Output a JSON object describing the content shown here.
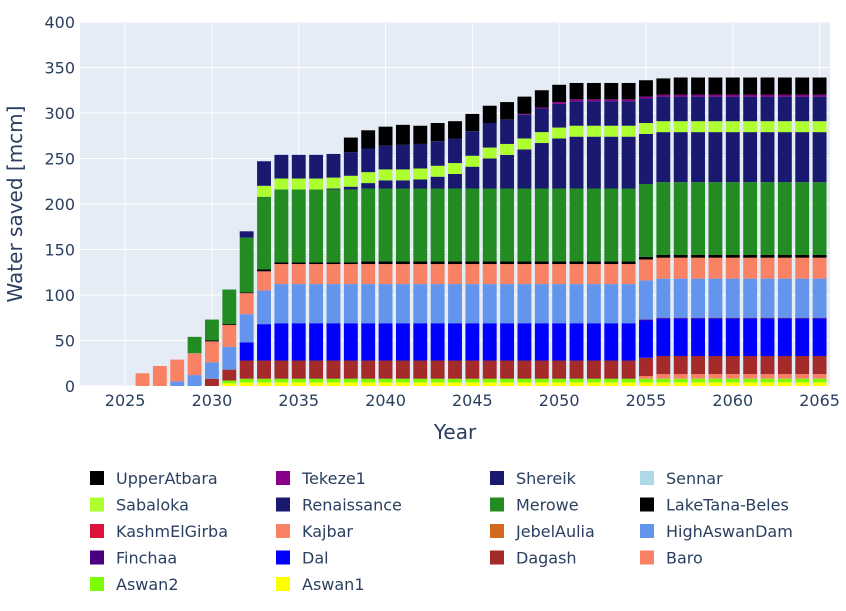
{
  "chart_data": {
    "type": "bar",
    "stacked": true,
    "xlabel": "Year",
    "ylabel": "Water saved [mcm]",
    "ylim": [
      0,
      400
    ],
    "yticks": [
      0,
      50,
      100,
      150,
      200,
      250,
      300,
      350,
      400
    ],
    "xticks": [
      2025,
      2030,
      2035,
      2040,
      2045,
      2050,
      2055,
      2060,
      2065
    ],
    "xlim": [
      2022.4,
      2065.6
    ],
    "grid": true,
    "legend_position": "bottom",
    "plot_bgcolor": "#e5ecf6",
    "x": [
      2026,
      2027,
      2028,
      2029,
      2030,
      2031,
      2032,
      2033,
      2034,
      2035,
      2036,
      2037,
      2038,
      2039,
      2040,
      2041,
      2042,
      2043,
      2044,
      2045,
      2046,
      2047,
      2048,
      2049,
      2050,
      2051,
      2052,
      2053,
      2054,
      2055,
      2056,
      2057,
      2058,
      2059,
      2060,
      2061,
      2062,
      2063,
      2064,
      2065
    ],
    "series": [
      {
        "name": "Aswan1",
        "color": "#ffff00",
        "values": [
          0,
          0,
          0,
          0,
          0,
          3,
          4,
          4,
          4,
          4,
          4,
          4,
          4,
          4,
          4,
          4,
          4,
          4,
          4,
          4,
          4,
          4,
          4,
          4,
          4,
          4,
          4,
          4,
          4,
          4,
          4,
          4,
          4,
          4,
          4,
          4,
          4,
          4,
          4,
          4
        ]
      },
      {
        "name": "Aswan2",
        "color": "#7cfc00",
        "values": [
          0,
          0,
          0,
          0,
          0,
          3,
          4,
          4,
          4,
          4,
          4,
          4,
          4,
          4,
          4,
          4,
          4,
          4,
          4,
          4,
          4,
          4,
          4,
          4,
          4,
          4,
          4,
          4,
          4,
          4,
          4,
          4,
          4,
          4,
          4,
          4,
          4,
          4,
          4,
          4
        ]
      },
      {
        "name": "Baro",
        "color": "#fa8264",
        "values": [
          0,
          0,
          0,
          0,
          0,
          0,
          0,
          0,
          0,
          0,
          0,
          0,
          0,
          0,
          0,
          0,
          0,
          0,
          0,
          0,
          0,
          0,
          0,
          0,
          0,
          0,
          0,
          0,
          0,
          3,
          5,
          5,
          5,
          5,
          5,
          5,
          5,
          5,
          5,
          5
        ]
      },
      {
        "name": "Dagash",
        "color": "#a52a2a",
        "values": [
          0,
          0,
          0,
          0,
          8,
          12,
          20,
          20,
          20,
          20,
          20,
          20,
          20,
          20,
          20,
          20,
          20,
          20,
          20,
          20,
          20,
          20,
          20,
          20,
          20,
          20,
          20,
          20,
          20,
          20,
          20,
          20,
          20,
          20,
          20,
          20,
          20,
          20,
          20,
          20
        ]
      },
      {
        "name": "Dal",
        "color": "#0000ff",
        "values": [
          0,
          0,
          0,
          0,
          0,
          0,
          20,
          40,
          41,
          41,
          41,
          41,
          41,
          41,
          41,
          41,
          41,
          41,
          41,
          41,
          41,
          41,
          41,
          41,
          41,
          41,
          41,
          41,
          41,
          41,
          41,
          41,
          41,
          41,
          41,
          41,
          41,
          41,
          41,
          41
        ]
      },
      {
        "name": "Finchaa",
        "color": "#4b0082",
        "values": [
          0,
          0,
          0,
          0,
          0,
          0,
          0,
          0,
          0,
          0,
          0,
          0,
          0,
          0,
          0,
          0,
          0,
          0,
          0,
          0,
          0,
          0,
          0,
          0,
          0,
          0,
          0,
          0,
          0,
          1,
          1,
          1,
          1,
          1,
          1,
          1,
          1,
          1,
          1,
          1
        ]
      },
      {
        "name": "HighAswanDam",
        "color": "#6495ed",
        "values": [
          0,
          0,
          5,
          12,
          18,
          25,
          31,
          37,
          43,
          43,
          43,
          43,
          43,
          43,
          43,
          43,
          43,
          43,
          43,
          43,
          43,
          43,
          43,
          43,
          43,
          43,
          43,
          43,
          43,
          43,
          43,
          43,
          43,
          43,
          43,
          43,
          43,
          43,
          43,
          43
        ]
      },
      {
        "name": "JebelAulia",
        "color": "#d2691e",
        "values": [
          0,
          0,
          0,
          0,
          0,
          0,
          0,
          0,
          0,
          0,
          0,
          0,
          0,
          0,
          0,
          0,
          0,
          0,
          0,
          0,
          0,
          0,
          0,
          0,
          0,
          0,
          0,
          0,
          0,
          0,
          0,
          0,
          0,
          0,
          0,
          0,
          0,
          0,
          0,
          0
        ]
      },
      {
        "name": "Kajbar",
        "color": "#fa8264",
        "values": [
          14,
          22,
          24,
          24,
          23,
          24,
          23,
          21,
          22,
          22,
          22,
          22,
          22,
          22,
          22,
          22,
          22,
          22,
          22,
          22,
          22,
          22,
          22,
          22,
          22,
          22,
          22,
          22,
          22,
          23,
          23,
          23,
          23,
          23,
          23,
          23,
          23,
          23,
          23,
          23
        ]
      },
      {
        "name": "KashmElGirba",
        "color": "#dc143c",
        "values": [
          0,
          0,
          0,
          0,
          0,
          0,
          0,
          0,
          0,
          0,
          0,
          0,
          0,
          0,
          0,
          0,
          0,
          0,
          0,
          0,
          0,
          0,
          0,
          0,
          0,
          0,
          0,
          0,
          0,
          0,
          0,
          0,
          0,
          0,
          0,
          0,
          0,
          0,
          0,
          0
        ]
      },
      {
        "name": "LakeTana-Beles",
        "color": "#000000",
        "values": [
          0,
          0,
          0,
          0,
          1,
          1,
          1,
          2,
          2,
          2,
          2,
          2,
          2,
          3,
          3,
          3,
          3,
          3,
          3,
          3,
          3,
          3,
          3,
          3,
          3,
          3,
          3,
          3,
          3,
          3,
          3,
          3,
          3,
          3,
          3,
          3,
          3,
          3,
          3,
          3
        ]
      },
      {
        "name": "Merowe",
        "color": "#228b22",
        "values": [
          0,
          0,
          0,
          18,
          23,
          38,
          60,
          80,
          80,
          80,
          80,
          80,
          80,
          80,
          80,
          80,
          80,
          80,
          80,
          80,
          80,
          80,
          80,
          80,
          80,
          80,
          80,
          80,
          80,
          80,
          80,
          80,
          80,
          80,
          80,
          80,
          80,
          80,
          80,
          80
        ]
      },
      {
        "name": "Renaissance",
        "color": "#191970",
        "values": [
          0,
          0,
          0,
          0,
          0,
          0,
          0,
          0,
          0,
          0,
          0,
          1,
          3,
          6,
          9,
          9,
          10,
          13,
          16,
          24,
          33,
          37,
          43,
          50,
          55,
          57,
          57,
          57,
          57,
          55,
          55,
          55,
          55,
          55,
          55,
          55,
          55,
          55,
          55,
          55
        ]
      },
      {
        "name": "Sabaloka",
        "color": "#adff2f",
        "values": [
          0,
          0,
          0,
          0,
          0,
          0,
          0,
          12,
          12,
          12,
          12,
          12,
          12,
          12,
          12,
          12,
          12,
          12,
          12,
          12,
          12,
          12,
          12,
          12,
          12,
          12,
          12,
          12,
          12,
          12,
          12,
          12,
          12,
          12,
          12,
          12,
          12,
          12,
          12,
          12
        ]
      },
      {
        "name": "Sennar",
        "color": "#add8e6",
        "values": [
          0,
          0,
          0,
          0,
          0,
          0,
          0,
          0,
          0,
          0,
          0,
          0,
          0,
          0,
          0,
          0,
          0,
          0,
          0,
          0,
          0,
          0,
          0,
          0,
          0,
          0,
          0,
          0,
          0,
          0,
          0,
          0,
          0,
          0,
          0,
          0,
          0,
          0,
          0,
          0
        ]
      },
      {
        "name": "Shereik",
        "color": "#191970",
        "values": [
          0,
          0,
          0,
          0,
          0,
          0,
          7,
          27,
          26,
          26,
          26,
          26,
          26,
          26,
          26,
          27,
          27,
          27,
          27,
          27,
          27,
          27,
          26,
          26,
          26,
          27,
          27,
          27,
          27,
          27,
          27,
          27,
          27,
          27,
          27,
          27,
          27,
          27,
          27,
          27
        ]
      },
      {
        "name": "Tekeze1",
        "color": "#8b008b",
        "values": [
          0,
          0,
          0,
          0,
          0,
          0,
          0,
          0,
          0,
          0,
          0,
          0,
          0,
          0,
          0,
          0,
          0,
          0,
          0,
          0,
          0,
          0,
          1,
          1,
          2,
          2,
          2,
          2,
          2,
          2,
          2,
          2,
          2,
          2,
          2,
          2,
          2,
          2,
          2,
          2
        ]
      },
      {
        "name": "UpperAtbara",
        "color": "#000000",
        "values": [
          0,
          0,
          0,
          0,
          0,
          0,
          0,
          0,
          0,
          0,
          0,
          0,
          16,
          20,
          21,
          22,
          20,
          20,
          19,
          19,
          19,
          19,
          19,
          19,
          19,
          18,
          18,
          18,
          18,
          18,
          18,
          19,
          19,
          19,
          19,
          19,
          19,
          19,
          19,
          19
        ]
      }
    ],
    "legend": [
      {
        "name": "UpperAtbara",
        "color": "#000000"
      },
      {
        "name": "Tekeze1",
        "color": "#8b008b"
      },
      {
        "name": "Shereik",
        "color": "#191970"
      },
      {
        "name": "Sennar",
        "color": "#add8e6"
      },
      {
        "name": "Sabaloka",
        "color": "#adff2f"
      },
      {
        "name": "Renaissance",
        "color": "#191970"
      },
      {
        "name": "Merowe",
        "color": "#228b22"
      },
      {
        "name": "LakeTana-Beles",
        "color": "#000000"
      },
      {
        "name": "KashmElGirba",
        "color": "#dc143c"
      },
      {
        "name": "Kajbar",
        "color": "#fa8264"
      },
      {
        "name": "JebelAulia",
        "color": "#d2691e"
      },
      {
        "name": "HighAswanDam",
        "color": "#6495ed"
      },
      {
        "name": "Finchaa",
        "color": "#4b0082"
      },
      {
        "name": "Dal",
        "color": "#0000ff"
      },
      {
        "name": "Dagash",
        "color": "#a52a2a"
      },
      {
        "name": "Baro",
        "color": "#fa8264"
      },
      {
        "name": "Aswan2",
        "color": "#7cfc00"
      },
      {
        "name": "Aswan1",
        "color": "#ffff00"
      }
    ]
  }
}
